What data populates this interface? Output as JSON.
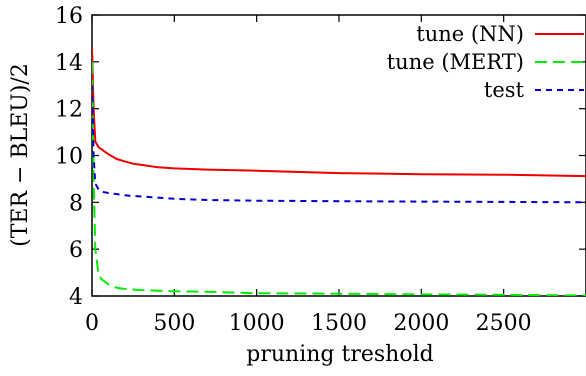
{
  "chart_data": {
    "type": "line",
    "title": "",
    "xlabel": "pruning treshold",
    "ylabel": "(TER − BLEU)/2",
    "xlim": [
      0,
      3000
    ],
    "ylim": [
      4,
      16
    ],
    "xticks": [
      0,
      500,
      1000,
      1500,
      2000,
      2500
    ],
    "yticks": [
      4,
      6,
      8,
      10,
      12,
      14,
      16
    ],
    "grid": false,
    "legend_position": "top-right",
    "series": [
      {
        "name": "tune (NN)",
        "color": "#ee0000",
        "dash": "solid",
        "x": [
          0,
          10,
          20,
          40,
          60,
          100,
          150,
          200,
          250,
          300,
          400,
          500,
          700,
          1000,
          1500,
          2000,
          2500,
          3000
        ],
        "y": [
          14.6,
          12.0,
          10.6,
          10.35,
          10.25,
          10.05,
          9.85,
          9.75,
          9.65,
          9.6,
          9.5,
          9.45,
          9.4,
          9.35,
          9.25,
          9.2,
          9.18,
          9.12
        ]
      },
      {
        "name": "tune (MERT)",
        "color": "#00ee00",
        "dash": "dashed",
        "x": [
          0,
          10,
          20,
          40,
          60,
          100,
          150,
          200,
          300,
          500,
          700,
          1000,
          1500,
          2000,
          2500,
          3000
        ],
        "y": [
          14.0,
          9.0,
          6.0,
          4.9,
          4.7,
          4.5,
          4.35,
          4.3,
          4.25,
          4.2,
          4.18,
          4.12,
          4.1,
          4.07,
          4.05,
          4.02
        ]
      },
      {
        "name": "test",
        "color": "#0000cc",
        "dash": "short-dashed",
        "x": [
          0,
          10,
          20,
          40,
          60,
          100,
          150,
          200,
          300,
          500,
          700,
          1000,
          1500,
          2000,
          2500,
          3000
        ],
        "y": [
          13.0,
          10.0,
          8.8,
          8.55,
          8.45,
          8.4,
          8.35,
          8.3,
          8.25,
          8.15,
          8.1,
          8.07,
          8.05,
          8.03,
          8.02,
          8.0
        ]
      }
    ]
  }
}
